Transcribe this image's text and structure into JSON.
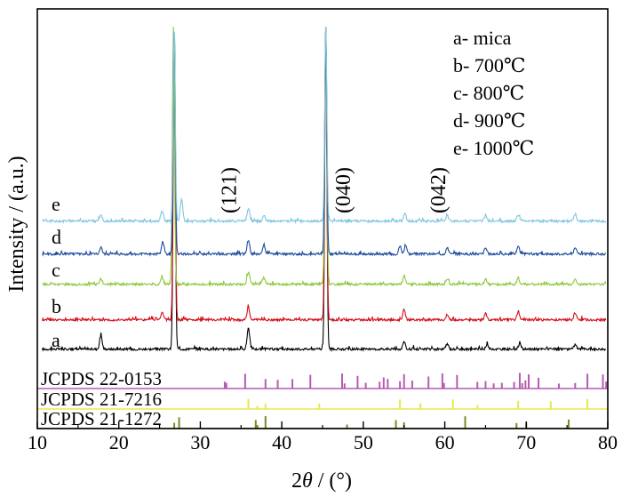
{
  "chart_data": {
    "type": "line",
    "xlabel_prefix": "2",
    "xlabel_symbol": "θ",
    "xlabel_suffix": " / (°)",
    "ylabel": "Intensity / (a.u.)",
    "xlim": [
      10,
      80
    ],
    "xticks": [
      "10",
      "20",
      "30",
      "40",
      "50",
      "60",
      "70",
      "80"
    ],
    "legend": [
      "a- mica",
      "b- 700℃",
      "c- 800℃",
      "d- 900℃",
      "e- 1000℃"
    ],
    "plane_labels": [
      {
        "text": "(121)",
        "x": 33.5
      },
      {
        "text": "(040)",
        "x": 47.5
      },
      {
        "text": "(042)",
        "x": 59.2
      }
    ],
    "series": [
      {
        "name": "a",
        "color": "#000000",
        "peaks": [
          [
            17.8,
            15
          ],
          [
            26.8,
            1000
          ],
          [
            35.9,
            24
          ],
          [
            45.4,
            1000
          ],
          [
            55.0,
            8
          ],
          [
            60.3,
            6
          ],
          [
            65.2,
            5
          ],
          [
            69.2,
            6
          ],
          [
            76.0,
            5
          ]
        ]
      },
      {
        "name": "b",
        "color": "#d4101c",
        "peaks": [
          [
            25.3,
            8
          ],
          [
            26.8,
            1000
          ],
          [
            35.9,
            14
          ],
          [
            45.4,
            1000
          ],
          [
            55.0,
            12
          ],
          [
            60.3,
            6
          ],
          [
            65.0,
            7
          ],
          [
            69.0,
            8
          ],
          [
            76.0,
            8
          ]
        ]
      },
      {
        "name": "c",
        "color": "#8cc83c",
        "peaks": [
          [
            17.8,
            6
          ],
          [
            25.3,
            8
          ],
          [
            26.7,
            1000
          ],
          [
            35.9,
            14
          ],
          [
            37.8,
            8
          ],
          [
            45.4,
            1000
          ],
          [
            55.0,
            10
          ],
          [
            60.3,
            6
          ],
          [
            65.0,
            6
          ],
          [
            69.0,
            7
          ],
          [
            76.0,
            6
          ]
        ]
      },
      {
        "name": "d",
        "color": "#1f4d9e",
        "peaks": [
          [
            17.8,
            8
          ],
          [
            25.4,
            14
          ],
          [
            26.8,
            1000
          ],
          [
            35.9,
            16
          ],
          [
            37.8,
            10
          ],
          [
            45.4,
            1000
          ],
          [
            54.5,
            9
          ],
          [
            55.2,
            10
          ],
          [
            60.3,
            7
          ],
          [
            65.0,
            7
          ],
          [
            69.0,
            9
          ],
          [
            76.0,
            7
          ]
        ]
      },
      {
        "name": "e",
        "color": "#7fc6e0",
        "peaks": [
          [
            17.8,
            8
          ],
          [
            25.3,
            12
          ],
          [
            26.8,
            1000
          ],
          [
            27.7,
            24
          ],
          [
            35.9,
            14
          ],
          [
            37.8,
            6
          ],
          [
            45.4,
            1000
          ],
          [
            55.1,
            9
          ],
          [
            60.3,
            6
          ],
          [
            65.0,
            6
          ],
          [
            69.0,
            7
          ],
          [
            76.0,
            8
          ]
        ]
      }
    ],
    "references": [
      {
        "label": "JCPDS 22-0153",
        "color": "#b65bb3",
        "positions": [
          33.0,
          33.2,
          35.5,
          38.0,
          39.5,
          41.3,
          43.5,
          47.4,
          47.7,
          49.3,
          50.3,
          52.0,
          52.5,
          53.0,
          54.5,
          55.0,
          56.0,
          58.0,
          59.7,
          59.9,
          61.5,
          64.0,
          65.0,
          66.0,
          67.0,
          68.5,
          69.2,
          69.5,
          69.9,
          70.3,
          71.5,
          74.0,
          76.0,
          77.5,
          79.4,
          79.8
        ]
      },
      {
        "label": "JCPDS 21-7216",
        "color": "#e8e84a",
        "positions": [
          35.9,
          37.0,
          38.0,
          44.6,
          54.5,
          57.0,
          61.0,
          64.0,
          69.0,
          73.0,
          77.5
        ]
      },
      {
        "label": "JCPDS 21-1272",
        "color": "#7a8a22",
        "positions": [
          26.8,
          27.4,
          36.8,
          37.0,
          38.0,
          48.0,
          54.0,
          55.0,
          62.5,
          68.8,
          70.0,
          75.2
        ]
      }
    ]
  }
}
